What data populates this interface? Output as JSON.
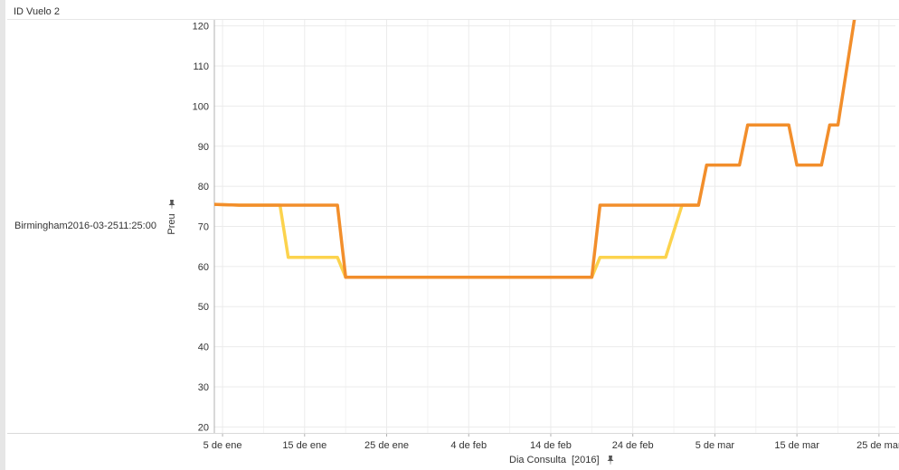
{
  "header": {
    "title": "ID Vuelo 2"
  },
  "row": {
    "label": "Birmingham2016-03-2511:25:00"
  },
  "icons": {
    "y_axis_pin": "pin-icon",
    "x_axis_pin": "pin-icon"
  },
  "colors": {
    "dark_series": "#f28e2b",
    "light_series": "#fcd34d",
    "grid": "#ebebeb",
    "axis": "#b0b0b0"
  },
  "chart_data": {
    "type": "line",
    "ylabel": "Preu",
    "xlabel": "Dia Consulta",
    "xlabel_suffix": "[2016]",
    "ylim": [
      18.5,
      121.5
    ],
    "yticks": [
      20,
      30,
      40,
      50,
      60,
      70,
      80,
      90,
      100,
      110,
      120
    ],
    "xlim": [
      "2016-01-04",
      "2016-03-27"
    ],
    "xticks": [
      {
        "date": "2016-01-05",
        "label": "5 de ene"
      },
      {
        "date": "2016-01-15",
        "label": "15 de ene"
      },
      {
        "date": "2016-01-25",
        "label": "25 de ene"
      },
      {
        "date": "2016-02-04",
        "label": "4 de feb"
      },
      {
        "date": "2016-02-14",
        "label": "14 de feb"
      },
      {
        "date": "2016-02-24",
        "label": "24 de feb"
      },
      {
        "date": "2016-03-05",
        "label": "5 de mar"
      },
      {
        "date": "2016-03-15",
        "label": "15 de mar"
      },
      {
        "date": "2016-03-25",
        "label": "25 de mar"
      }
    ],
    "series": [
      {
        "color": "#fcd34d",
        "points": [
          [
            "2016-01-04",
            75.5
          ],
          [
            "2016-01-07",
            75.3
          ],
          [
            "2016-01-12",
            75.3
          ],
          [
            "2016-01-13",
            62.3
          ],
          [
            "2016-01-19",
            62.3
          ],
          [
            "2016-01-20",
            57.3
          ],
          [
            "2016-02-19",
            57.3
          ],
          [
            "2016-02-20",
            62.3
          ],
          [
            "2016-02-28",
            62.3
          ],
          [
            "2016-03-01",
            75.3
          ],
          [
            "2016-03-03",
            75.3
          ]
        ]
      },
      {
        "color": "#f28e2b",
        "points": [
          [
            "2016-01-04",
            75.5
          ],
          [
            "2016-01-07",
            75.3
          ],
          [
            "2016-01-19",
            75.3
          ],
          [
            "2016-01-20",
            57.3
          ],
          [
            "2016-02-19",
            57.3
          ],
          [
            "2016-02-20",
            75.3
          ],
          [
            "2016-03-03",
            75.3
          ],
          [
            "2016-03-04",
            85.3
          ],
          [
            "2016-03-08",
            85.3
          ],
          [
            "2016-03-09",
            95.3
          ],
          [
            "2016-03-14",
            95.3
          ],
          [
            "2016-03-15",
            85.3
          ],
          [
            "2016-03-18",
            85.3
          ],
          [
            "2016-03-19",
            95.3
          ],
          [
            "2016-03-20",
            95.3
          ],
          [
            "2016-03-22",
            121.5
          ]
        ]
      }
    ]
  }
}
